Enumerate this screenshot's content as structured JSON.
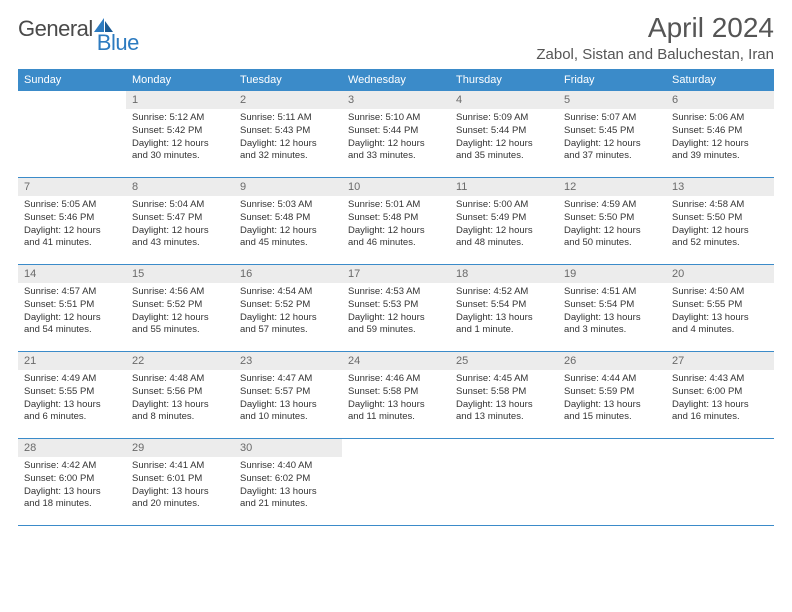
{
  "logo": {
    "text1": "General",
    "text2": "Blue"
  },
  "title": "April 2024",
  "location": "Zabol, Sistan and Baluchestan, Iran",
  "colors": {
    "header_bg": "#3b8bc9",
    "header_text": "#ffffff",
    "daynum_bg": "#ececec",
    "daynum_text": "#6a6a6a",
    "body_text": "#333333",
    "rule": "#3b8bc9",
    "logo_gray": "#4a4a4a",
    "logo_blue": "#2d7bc0"
  },
  "day_names": [
    "Sunday",
    "Monday",
    "Tuesday",
    "Wednesday",
    "Thursday",
    "Friday",
    "Saturday"
  ],
  "weeks": [
    [
      {
        "n": "",
        "lines": []
      },
      {
        "n": "1",
        "lines": [
          "Sunrise: 5:12 AM",
          "Sunset: 5:42 PM",
          "Daylight: 12 hours",
          "and 30 minutes."
        ]
      },
      {
        "n": "2",
        "lines": [
          "Sunrise: 5:11 AM",
          "Sunset: 5:43 PM",
          "Daylight: 12 hours",
          "and 32 minutes."
        ]
      },
      {
        "n": "3",
        "lines": [
          "Sunrise: 5:10 AM",
          "Sunset: 5:44 PM",
          "Daylight: 12 hours",
          "and 33 minutes."
        ]
      },
      {
        "n": "4",
        "lines": [
          "Sunrise: 5:09 AM",
          "Sunset: 5:44 PM",
          "Daylight: 12 hours",
          "and 35 minutes."
        ]
      },
      {
        "n": "5",
        "lines": [
          "Sunrise: 5:07 AM",
          "Sunset: 5:45 PM",
          "Daylight: 12 hours",
          "and 37 minutes."
        ]
      },
      {
        "n": "6",
        "lines": [
          "Sunrise: 5:06 AM",
          "Sunset: 5:46 PM",
          "Daylight: 12 hours",
          "and 39 minutes."
        ]
      }
    ],
    [
      {
        "n": "7",
        "lines": [
          "Sunrise: 5:05 AM",
          "Sunset: 5:46 PM",
          "Daylight: 12 hours",
          "and 41 minutes."
        ]
      },
      {
        "n": "8",
        "lines": [
          "Sunrise: 5:04 AM",
          "Sunset: 5:47 PM",
          "Daylight: 12 hours",
          "and 43 minutes."
        ]
      },
      {
        "n": "9",
        "lines": [
          "Sunrise: 5:03 AM",
          "Sunset: 5:48 PM",
          "Daylight: 12 hours",
          "and 45 minutes."
        ]
      },
      {
        "n": "10",
        "lines": [
          "Sunrise: 5:01 AM",
          "Sunset: 5:48 PM",
          "Daylight: 12 hours",
          "and 46 minutes."
        ]
      },
      {
        "n": "11",
        "lines": [
          "Sunrise: 5:00 AM",
          "Sunset: 5:49 PM",
          "Daylight: 12 hours",
          "and 48 minutes."
        ]
      },
      {
        "n": "12",
        "lines": [
          "Sunrise: 4:59 AM",
          "Sunset: 5:50 PM",
          "Daylight: 12 hours",
          "and 50 minutes."
        ]
      },
      {
        "n": "13",
        "lines": [
          "Sunrise: 4:58 AM",
          "Sunset: 5:50 PM",
          "Daylight: 12 hours",
          "and 52 minutes."
        ]
      }
    ],
    [
      {
        "n": "14",
        "lines": [
          "Sunrise: 4:57 AM",
          "Sunset: 5:51 PM",
          "Daylight: 12 hours",
          "and 54 minutes."
        ]
      },
      {
        "n": "15",
        "lines": [
          "Sunrise: 4:56 AM",
          "Sunset: 5:52 PM",
          "Daylight: 12 hours",
          "and 55 minutes."
        ]
      },
      {
        "n": "16",
        "lines": [
          "Sunrise: 4:54 AM",
          "Sunset: 5:52 PM",
          "Daylight: 12 hours",
          "and 57 minutes."
        ]
      },
      {
        "n": "17",
        "lines": [
          "Sunrise: 4:53 AM",
          "Sunset: 5:53 PM",
          "Daylight: 12 hours",
          "and 59 minutes."
        ]
      },
      {
        "n": "18",
        "lines": [
          "Sunrise: 4:52 AM",
          "Sunset: 5:54 PM",
          "Daylight: 13 hours",
          "and 1 minute."
        ]
      },
      {
        "n": "19",
        "lines": [
          "Sunrise: 4:51 AM",
          "Sunset: 5:54 PM",
          "Daylight: 13 hours",
          "and 3 minutes."
        ]
      },
      {
        "n": "20",
        "lines": [
          "Sunrise: 4:50 AM",
          "Sunset: 5:55 PM",
          "Daylight: 13 hours",
          "and 4 minutes."
        ]
      }
    ],
    [
      {
        "n": "21",
        "lines": [
          "Sunrise: 4:49 AM",
          "Sunset: 5:55 PM",
          "Daylight: 13 hours",
          "and 6 minutes."
        ]
      },
      {
        "n": "22",
        "lines": [
          "Sunrise: 4:48 AM",
          "Sunset: 5:56 PM",
          "Daylight: 13 hours",
          "and 8 minutes."
        ]
      },
      {
        "n": "23",
        "lines": [
          "Sunrise: 4:47 AM",
          "Sunset: 5:57 PM",
          "Daylight: 13 hours",
          "and 10 minutes."
        ]
      },
      {
        "n": "24",
        "lines": [
          "Sunrise: 4:46 AM",
          "Sunset: 5:58 PM",
          "Daylight: 13 hours",
          "and 11 minutes."
        ]
      },
      {
        "n": "25",
        "lines": [
          "Sunrise: 4:45 AM",
          "Sunset: 5:58 PM",
          "Daylight: 13 hours",
          "and 13 minutes."
        ]
      },
      {
        "n": "26",
        "lines": [
          "Sunrise: 4:44 AM",
          "Sunset: 5:59 PM",
          "Daylight: 13 hours",
          "and 15 minutes."
        ]
      },
      {
        "n": "27",
        "lines": [
          "Sunrise: 4:43 AM",
          "Sunset: 6:00 PM",
          "Daylight: 13 hours",
          "and 16 minutes."
        ]
      }
    ],
    [
      {
        "n": "28",
        "lines": [
          "Sunrise: 4:42 AM",
          "Sunset: 6:00 PM",
          "Daylight: 13 hours",
          "and 18 minutes."
        ]
      },
      {
        "n": "29",
        "lines": [
          "Sunrise: 4:41 AM",
          "Sunset: 6:01 PM",
          "Daylight: 13 hours",
          "and 20 minutes."
        ]
      },
      {
        "n": "30",
        "lines": [
          "Sunrise: 4:40 AM",
          "Sunset: 6:02 PM",
          "Daylight: 13 hours",
          "and 21 minutes."
        ]
      },
      {
        "n": "",
        "lines": []
      },
      {
        "n": "",
        "lines": []
      },
      {
        "n": "",
        "lines": []
      },
      {
        "n": "",
        "lines": []
      }
    ]
  ]
}
